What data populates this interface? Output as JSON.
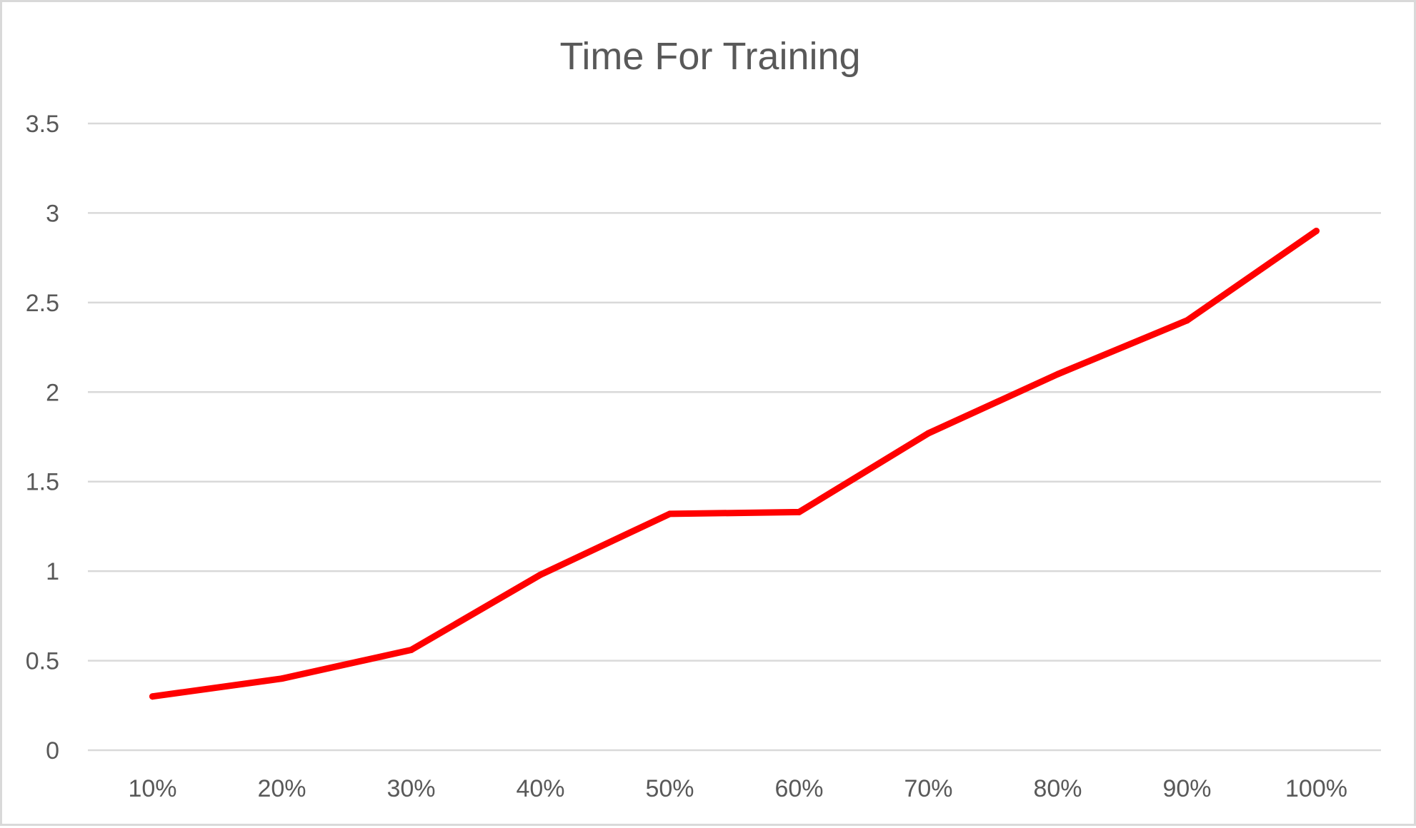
{
  "chart_data": {
    "type": "line",
    "title": "Time For Training",
    "xlabel": "",
    "ylabel": "",
    "categories": [
      "10%",
      "20%",
      "30%",
      "40%",
      "50%",
      "60%",
      "70%",
      "80%",
      "90%",
      "100%"
    ],
    "series": [
      {
        "values": [
          0.3,
          0.4,
          0.56,
          0.98,
          1.32,
          1.33,
          1.77,
          2.1,
          2.4,
          2.9
        ],
        "color": "#ff0000"
      }
    ],
    "ylim": [
      0,
      3.5
    ],
    "yticks": [
      "0",
      "0.5",
      "1",
      "1.5",
      "2",
      "2.5",
      "3",
      "3.5"
    ],
    "ytick_values": [
      0,
      0.5,
      1,
      1.5,
      2,
      2.5,
      3,
      3.5
    ],
    "grid": "horizontal",
    "legend": "none"
  }
}
